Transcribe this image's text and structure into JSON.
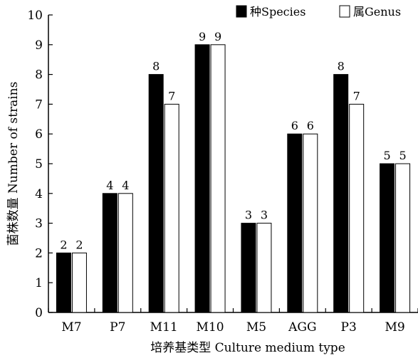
{
  "chart_data": {
    "type": "bar",
    "categories": [
      "M7",
      "P7",
      "M11",
      "M10",
      "M5",
      "AGG",
      "P3",
      "M9"
    ],
    "series": [
      {
        "name": "种Species",
        "values": [
          2,
          4,
          8,
          9,
          3,
          6,
          8,
          5
        ],
        "color": "#000000"
      },
      {
        "name": "属Genus",
        "values": [
          2,
          4,
          7,
          9,
          3,
          6,
          7,
          5
        ],
        "color": "#ffffff"
      }
    ],
    "xlabel": "培养基类型  Culture medium type",
    "ylabel": "菌株数量  Number of strains",
    "ylim": [
      0,
      10
    ],
    "yticks": [
      0,
      1,
      2,
      3,
      4,
      5,
      6,
      7,
      8,
      9,
      10
    ],
    "grid": false,
    "legend_position": "top-right"
  }
}
